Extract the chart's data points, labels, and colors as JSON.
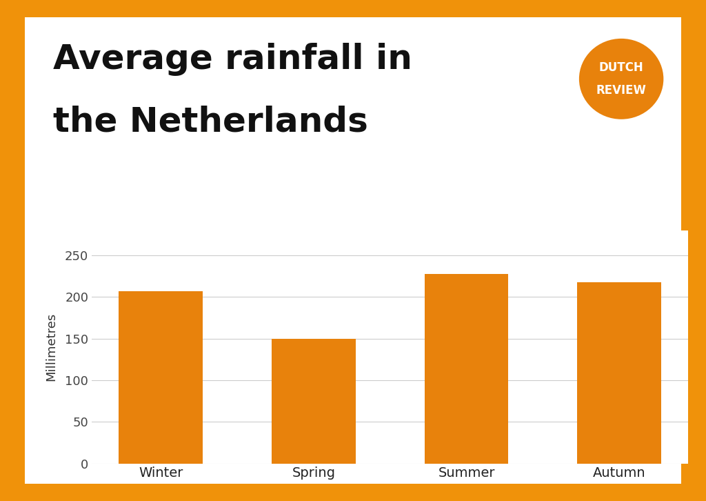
{
  "categories": [
    "Winter",
    "Spring",
    "Summer",
    "Autumn"
  ],
  "values": [
    207,
    150,
    228,
    218
  ],
  "bar_color": "#E8820C",
  "background_outer": "#F0920A",
  "background_inner": "#FFFFFF",
  "title_line1": "Average rainfall in",
  "title_line2": "the Netherlands",
  "ylabel": "Millimetres",
  "ylim": [
    0,
    280
  ],
  "yticks": [
    0,
    50,
    100,
    150,
    200,
    250
  ],
  "title_fontsize": 36,
  "axis_fontsize": 13,
  "tick_fontsize": 13,
  "grid_color": "#CCCCCC",
  "logo_text_line1": "DUTCH",
  "logo_text_line2": "REVIEW",
  "logo_color": "#E8820C",
  "logo_text_color": "#FFFFFF",
  "text_color": "#111111"
}
